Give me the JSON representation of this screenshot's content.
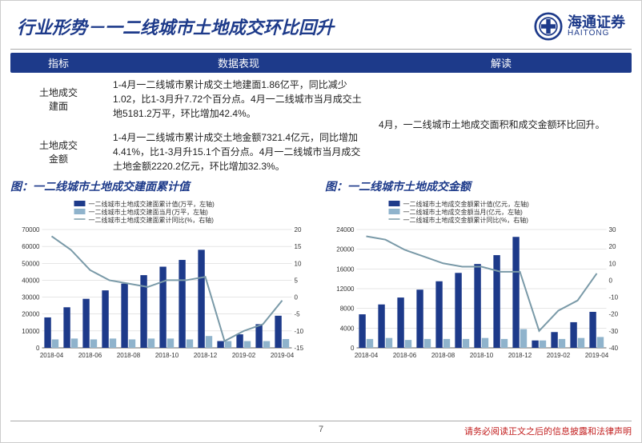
{
  "header": {
    "title": "行业形势－一二线城市土地成交环比回升",
    "logo_cn": "海通证券",
    "logo_en": "HAITONG"
  },
  "table": {
    "headers": [
      "指标",
      "数据表现",
      "解读"
    ],
    "rows": [
      {
        "label": "土地成交\n建面",
        "desc": "1-4月一二线城市累计成交土地建面1.86亿平，同比减少1.02，比1-3月升7.72个百分点。4月一二线城市当月成交土地5181.2万平，环比增加42.4%。"
      },
      {
        "label": "土地成交\n金额",
        "desc": "1-4月一二线城市累计成交土地金额7321.4亿元，同比增加4.41%，比1-3月升15.1个百分点。4月一二线城市当月成交土地金额2220.2亿元，环比增加32.3%。"
      }
    ],
    "interpretation": "4月，一二线城市土地成交面积和成交金额环比回升。"
  },
  "chart1": {
    "title": "图：一二线城市土地成交建面累计值",
    "type": "bar_line_combo",
    "categories": [
      "2018-04",
      "",
      "2018-06",
      "",
      "2018-08",
      "",
      "2018-10",
      "",
      "2018-12",
      "",
      "2019-02",
      "",
      "2019-04"
    ],
    "bars_primary": [
      18000,
      24000,
      29000,
      34000,
      38000,
      43000,
      48000,
      52000,
      58000,
      4000,
      8000,
      14000,
      19000
    ],
    "bars_secondary": [
      5000,
      5500,
      5000,
      5500,
      5000,
      5500,
      5500,
      5000,
      7000,
      4000,
      4000,
      4000,
      5200
    ],
    "line": [
      18,
      14,
      8,
      5,
      4,
      3,
      5,
      5,
      6,
      -13,
      -10,
      -8,
      -1
    ],
    "y1_max": 70000,
    "y1_step": 10000,
    "y2_min": -15,
    "y2_max": 20,
    "y2_step": 5,
    "legend": [
      "一二线城市土地成交建面累计值(万平，左轴)",
      "一二线城市土地成交建面当月(万平，左轴)",
      "一二线城市土地成交建面累计同比(%，右轴)"
    ],
    "colors": {
      "bar1": "#1d3a8a",
      "bar2": "#8fb3cc",
      "line": "#7a9aa8",
      "bg": "#ffffff",
      "grid": "#cccccc"
    }
  },
  "chart2": {
    "title": "图：一二线城市土地成交金额",
    "type": "bar_line_combo",
    "categories": [
      "2018-04",
      "",
      "2018-06",
      "",
      "2018-08",
      "",
      "2018-10",
      "",
      "2018-12",
      "",
      "2019-02",
      "",
      "2019-04"
    ],
    "bars_primary": [
      6800,
      8800,
      10200,
      11800,
      13500,
      15200,
      17000,
      18800,
      22500,
      1500,
      3200,
      5200,
      7300
    ],
    "bars_secondary": [
      1800,
      2000,
      1600,
      1800,
      1800,
      1800,
      2000,
      1800,
      3800,
      1500,
      1800,
      2000,
      2200
    ],
    "line": [
      26,
      24,
      18,
      14,
      10,
      8,
      8,
      5,
      5,
      -30,
      -18,
      -12,
      4
    ],
    "y1_max": 24000,
    "y1_step": 4000,
    "y2_min": -40,
    "y2_max": 30,
    "y2_step": 10,
    "legend": [
      "一二线城市土地成交金额累计值(亿元，左轴)",
      "一二线城市土地成交金额当月(亿元，左轴)",
      "一二线城市土地成交金额累计同比(%，右轴)"
    ],
    "colors": {
      "bar1": "#1d3a8a",
      "bar2": "#8fb3cc",
      "line": "#7a9aa8",
      "bg": "#ffffff",
      "grid": "#cccccc"
    }
  },
  "footer": {
    "page": "7",
    "disclaimer": "请务必阅读正文之后的信息披露和法律声明"
  }
}
